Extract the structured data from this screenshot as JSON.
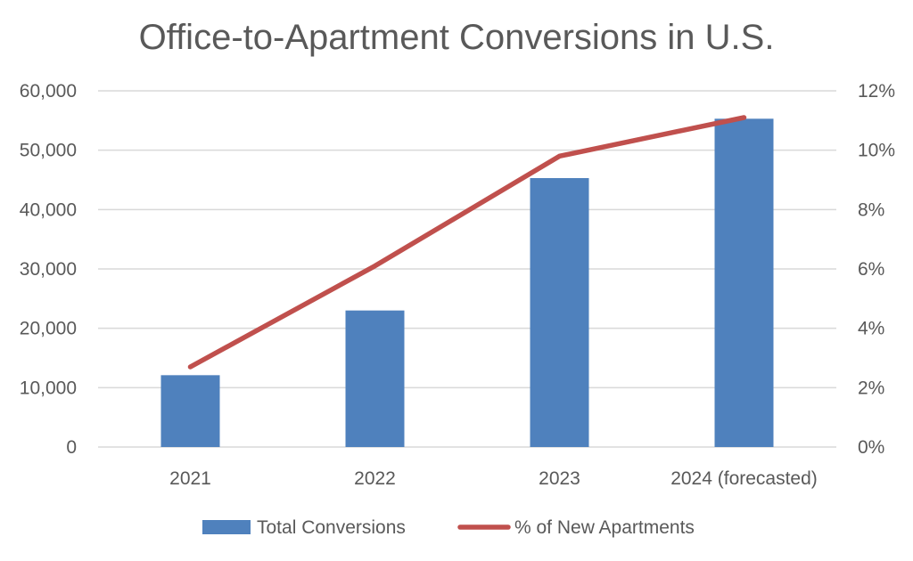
{
  "chart_data": {
    "type": "bar",
    "title": "Office-to-Apartment Conversions in U.S.",
    "categories": [
      "2021",
      "2022",
      "2023",
      "2024 (forecasted)"
    ],
    "series": [
      {
        "name": "Total Conversions",
        "kind": "bar",
        "axis": "left",
        "color": "#4F81BD",
        "values": [
          12100,
          23000,
          45300,
          55300
        ]
      },
      {
        "name": "% of New Apartments",
        "kind": "line",
        "axis": "right",
        "color": "#C0504D",
        "values": [
          2.7,
          6.1,
          9.8,
          11.1
        ]
      }
    ],
    "y_left": {
      "min": 0,
      "max": 60000,
      "ticks": [
        0,
        10000,
        20000,
        30000,
        40000,
        50000,
        60000
      ],
      "tick_labels": [
        "0",
        "10,000",
        "20,000",
        "30,000",
        "40,000",
        "50,000",
        "60,000"
      ]
    },
    "y_right": {
      "min": 0,
      "max": 12,
      "ticks": [
        0,
        2,
        4,
        6,
        8,
        10,
        12
      ],
      "tick_labels": [
        "0%",
        "2%",
        "4%",
        "6%",
        "8%",
        "10%",
        "12%"
      ]
    },
    "grid": true,
    "grid_color": "#D9D9D9",
    "legend_position": "bottom"
  }
}
